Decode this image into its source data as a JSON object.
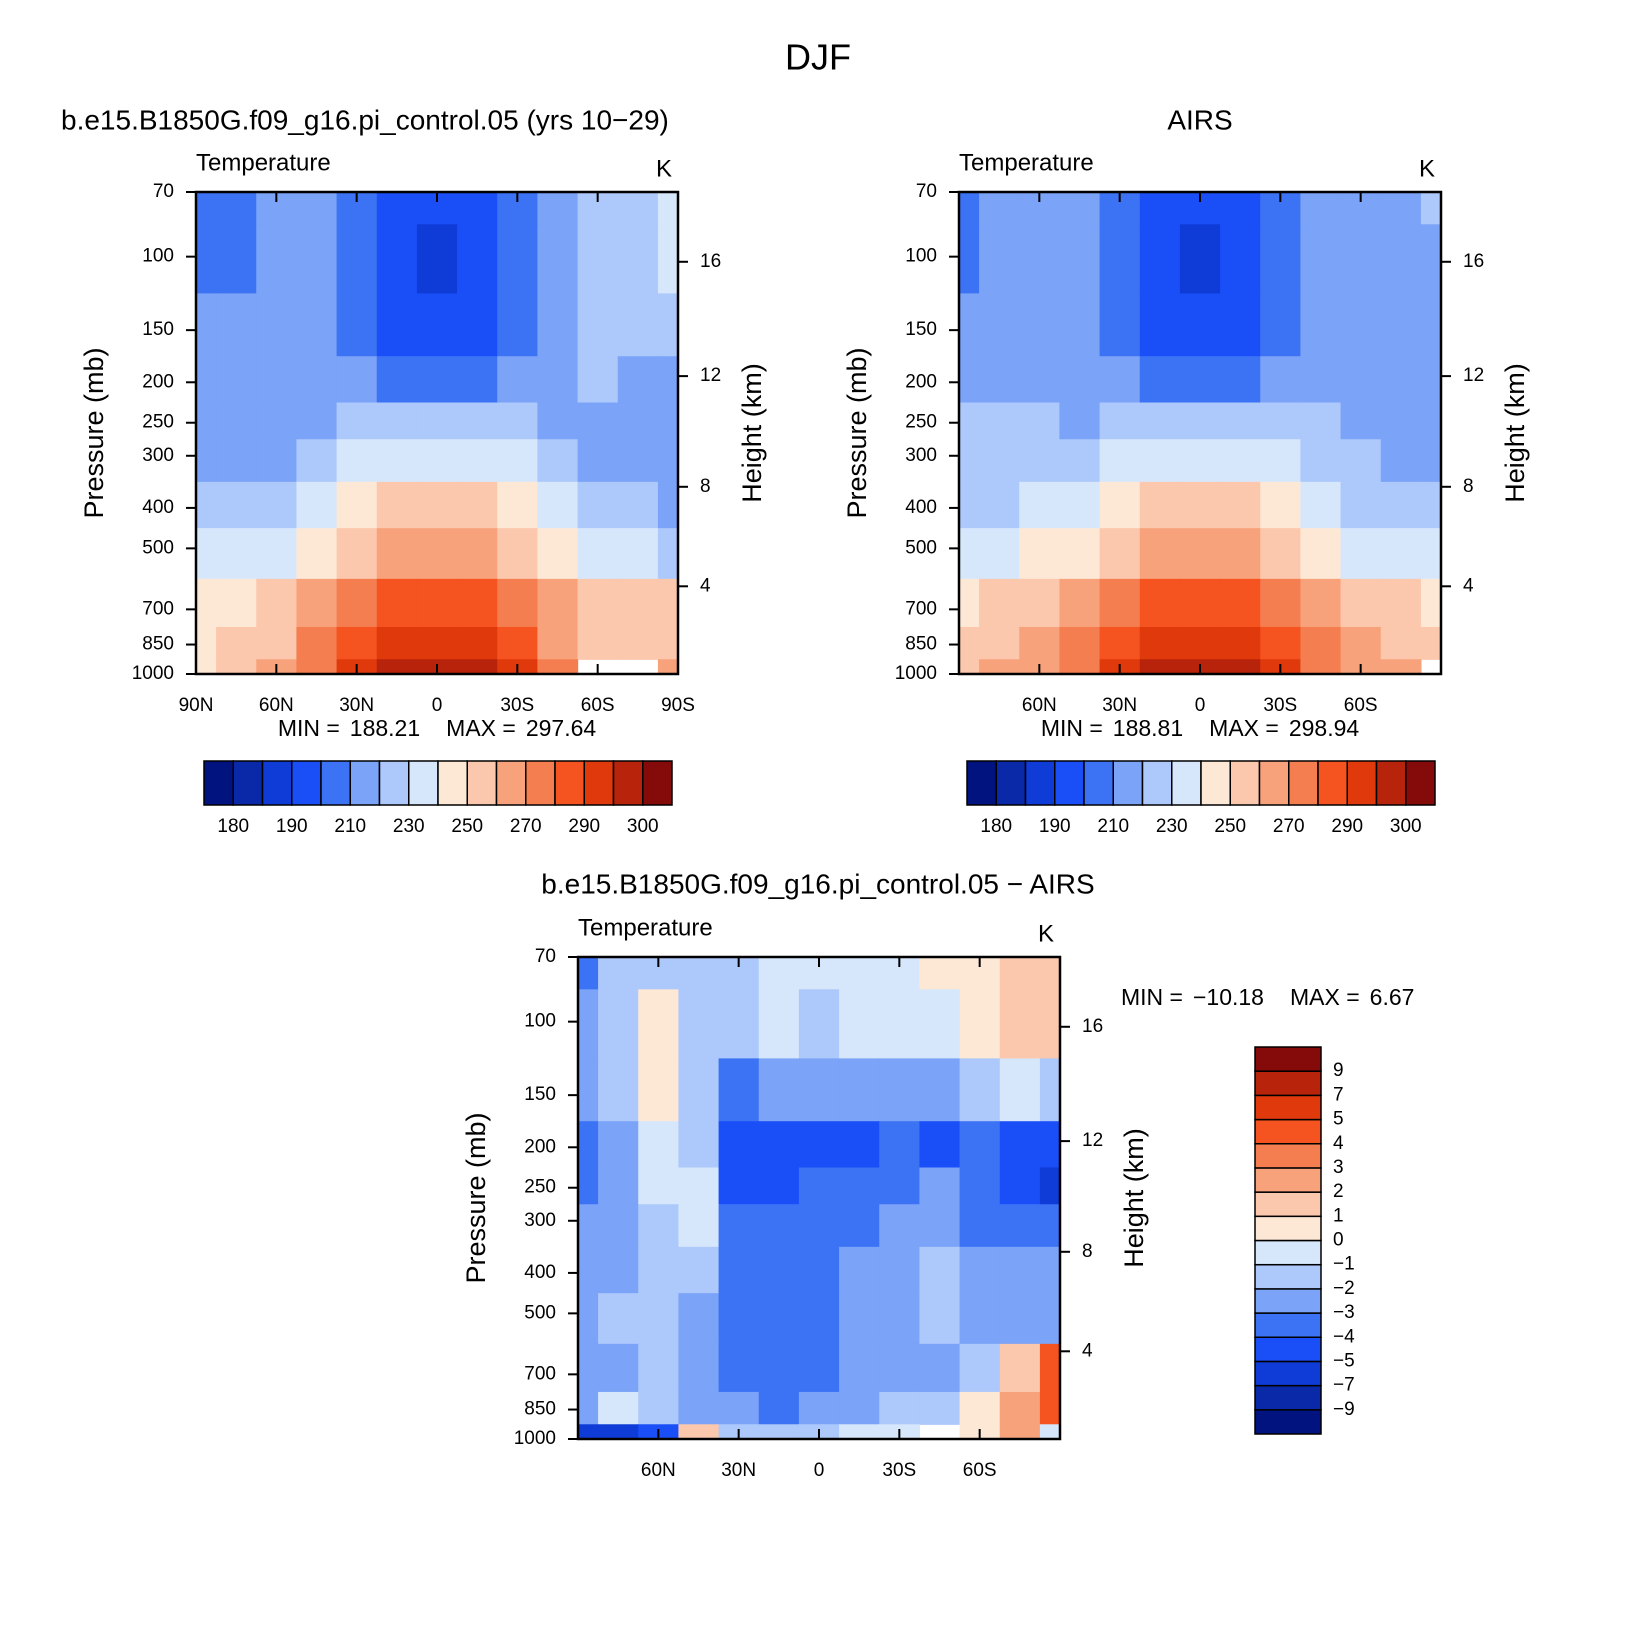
{
  "title": "DJF",
  "chart_data": [
    {
      "type": "contour",
      "subtitle": "b.e15.B1850G.f09_g16.pi_control.05 (yrs 10−29)",
      "left_label": "Temperature",
      "right_label": "K",
      "ylabel": "Pressure (mb)",
      "y2label": "Height (km)",
      "x": [
        90,
        75,
        60,
        45,
        30,
        15,
        0,
        -15,
        -30,
        -45,
        -60,
        -75,
        -90
      ],
      "y": [
        70,
        100,
        150,
        200,
        250,
        300,
        400,
        500,
        700,
        850,
        1000
      ],
      "values": [
        [
          205,
          205,
          215,
          215,
          205,
          195,
          195,
          195,
          205,
          215,
          225,
          225,
          235
        ],
        [
          205,
          205,
          215,
          215,
          205,
          195,
          188,
          195,
          205,
          215,
          225,
          225,
          235
        ],
        [
          215,
          215,
          215,
          215,
          205,
          195,
          195,
          195,
          205,
          215,
          225,
          225,
          225
        ],
        [
          215,
          215,
          215,
          215,
          215,
          205,
          205,
          205,
          215,
          215,
          225,
          215,
          215
        ],
        [
          215,
          215,
          215,
          215,
          225,
          225,
          225,
          225,
          225,
          215,
          215,
          215,
          215
        ],
        [
          215,
          215,
          215,
          225,
          235,
          235,
          235,
          235,
          235,
          225,
          215,
          215,
          215
        ],
        [
          225,
          225,
          225,
          235,
          245,
          255,
          255,
          255,
          245,
          235,
          225,
          225,
          215
        ],
        [
          235,
          235,
          235,
          245,
          255,
          265,
          265,
          265,
          255,
          245,
          235,
          235,
          225
        ],
        [
          245,
          245,
          255,
          265,
          275,
          285,
          285,
          285,
          275,
          265,
          255,
          255,
          255
        ],
        [
          245,
          255,
          255,
          275,
          285,
          292,
          292,
          292,
          285,
          265,
          255,
          255,
          255
        ],
        [
          245,
          255,
          265,
          275,
          292,
          297,
          297,
          297,
          292,
          275,
          null,
          null,
          265
        ]
      ],
      "xlim": [
        90,
        -90
      ],
      "ylim": [
        1000,
        70
      ],
      "log_y": true,
      "xticks": [
        {
          "value": 90,
          "label": "90N"
        },
        {
          "value": 60,
          "label": "60N"
        },
        {
          "value": 30,
          "label": "30N"
        },
        0,
        {
          "value": -30,
          "label": "30S"
        },
        {
          "value": -60,
          "label": "60S"
        },
        {
          "value": -90,
          "label": "90S"
        }
      ],
      "yticks": [
        70,
        100,
        150,
        200,
        250,
        300,
        400,
        500,
        700,
        850,
        1000
      ],
      "y2ticks": [
        4,
        8,
        12,
        16
      ],
      "stats": {
        "min_label": "MIN =",
        "min": 188.21,
        "max_label": "MAX =",
        "max": 297.64
      },
      "colorbar": {
        "orientation": "horizontal",
        "label_step": 2,
        "levels": [
          180,
          185,
          190,
          200,
          210,
          220,
          230,
          240,
          250,
          260,
          270,
          280,
          290,
          295,
          300
        ],
        "colors": [
          "#01137f",
          "#0a29a8",
          "#0f3bd6",
          "#1a4ff8",
          "#3c73f5",
          "#7ba3f8",
          "#adc8fb",
          "#d6e7fb",
          "#fde8d6",
          "#fcc8ad",
          "#f8a27c",
          "#f57e51",
          "#f5531f",
          "#e03a0c",
          "#b8230b",
          "#850a0a"
        ]
      }
    },
    {
      "type": "contour",
      "subtitle": "AIRS",
      "left_label": "Temperature",
      "right_label": "K",
      "ylabel": "Pressure (mb)",
      "y2label": "Height (km)",
      "x": [
        90,
        75,
        60,
        45,
        30,
        15,
        0,
        -15,
        -30,
        -45,
        -60,
        -75,
        -90
      ],
      "y": [
        70,
        100,
        150,
        200,
        250,
        300,
        400,
        500,
        700,
        850,
        1000
      ],
      "values": [
        [
          205,
          215,
          215,
          215,
          205,
          195,
          195,
          195,
          205,
          215,
          215,
          215,
          225
        ],
        [
          205,
          215,
          215,
          215,
          205,
          195,
          188,
          195,
          205,
          215,
          215,
          215,
          215
        ],
        [
          215,
          215,
          215,
          215,
          205,
          195,
          195,
          195,
          205,
          215,
          215,
          215,
          215
        ],
        [
          215,
          215,
          215,
          215,
          215,
          205,
          205,
          205,
          215,
          215,
          215,
          215,
          215
        ],
        [
          225,
          225,
          225,
          215,
          225,
          225,
          225,
          225,
          225,
          225,
          215,
          215,
          215
        ],
        [
          225,
          225,
          225,
          225,
          235,
          235,
          235,
          235,
          235,
          225,
          225,
          215,
          215
        ],
        [
          225,
          225,
          235,
          235,
          245,
          255,
          255,
          255,
          245,
          235,
          225,
          225,
          225
        ],
        [
          235,
          235,
          245,
          245,
          255,
          265,
          265,
          265,
          255,
          245,
          235,
          235,
          235
        ],
        [
          245,
          255,
          255,
          265,
          275,
          285,
          285,
          285,
          275,
          265,
          255,
          255,
          245
        ],
        [
          255,
          255,
          265,
          275,
          285,
          292,
          292,
          292,
          285,
          275,
          265,
          255,
          255
        ],
        [
          255,
          265,
          265,
          275,
          292,
          297,
          297,
          297,
          292,
          275,
          265,
          265,
          null
        ]
      ],
      "xlim": [
        90,
        -90
      ],
      "ylim": [
        1000,
        70
      ],
      "log_y": true,
      "xticks": [
        {
          "value": 60,
          "label": "60N"
        },
        {
          "value": 30,
          "label": "30N"
        },
        0,
        {
          "value": -30,
          "label": "30S"
        },
        {
          "value": -60,
          "label": "60S"
        }
      ],
      "yticks": [
        70,
        100,
        150,
        200,
        250,
        300,
        400,
        500,
        700,
        850,
        1000
      ],
      "y2ticks": [
        4,
        8,
        12,
        16
      ],
      "stats": {
        "min_label": "MIN =",
        "min": 188.81,
        "max_label": "MAX =",
        "max": 298.94
      },
      "colorbar": {
        "orientation": "horizontal",
        "label_step": 2,
        "levels": [
          180,
          185,
          190,
          200,
          210,
          220,
          230,
          240,
          250,
          260,
          270,
          280,
          290,
          295,
          300
        ],
        "colors": [
          "#01137f",
          "#0a29a8",
          "#0f3bd6",
          "#1a4ff8",
          "#3c73f5",
          "#7ba3f8",
          "#adc8fb",
          "#d6e7fb",
          "#fde8d6",
          "#fcc8ad",
          "#f8a27c",
          "#f57e51",
          "#f5531f",
          "#e03a0c",
          "#b8230b",
          "#850a0a"
        ]
      }
    },
    {
      "type": "contour",
      "subtitle": "b.e15.B1850G.f09_g16.pi_control.05 − AIRS",
      "left_label": "Temperature",
      "right_label": "K",
      "ylabel": "Pressure (mb)",
      "y2label": "Height (km)",
      "x": [
        90,
        75,
        60,
        45,
        30,
        15,
        0,
        -15,
        -30,
        -45,
        -60,
        -75,
        -90
      ],
      "y": [
        70,
        100,
        150,
        200,
        250,
        300,
        400,
        500,
        700,
        850,
        1000
      ],
      "values": [
        [
          -3.5,
          -1.5,
          -1.5,
          -1.5,
          -1.5,
          -0.5,
          -0.5,
          -0.5,
          -0.5,
          0.5,
          0.5,
          1.5,
          1.5
        ],
        [
          -2.5,
          -1.5,
          0.5,
          -1.5,
          -1.5,
          -0.5,
          -1.5,
          -0.5,
          -0.5,
          -0.5,
          0.5,
          1.5,
          1.5
        ],
        [
          -2.5,
          -1.5,
          0.5,
          -1.5,
          -3.5,
          -2.5,
          -2.5,
          -2.5,
          -2.5,
          -2.5,
          -1.5,
          -0.5,
          -1.5
        ],
        [
          -3.5,
          -2.5,
          -0.5,
          -1.5,
          -4.5,
          -4.5,
          -4.5,
          -4.5,
          -3.5,
          -4.5,
          -3.5,
          -4.5,
          -4.5
        ],
        [
          -3.5,
          -2.5,
          -0.5,
          -0.5,
          -4.5,
          -4.5,
          -3.5,
          -3.5,
          -3.5,
          -2.5,
          -3.5,
          -4.5,
          -6
        ],
        [
          -2.5,
          -2.5,
          -1.5,
          -0.5,
          -3.5,
          -3.5,
          -3.5,
          -3.5,
          -2.5,
          -2.5,
          -3.5,
          -3.5,
          -3.5
        ],
        [
          -2.5,
          -2.5,
          -1.5,
          -1.5,
          -3.5,
          -3.5,
          -3.5,
          -2.5,
          -2.5,
          -1.5,
          -2.5,
          -2.5,
          -2.5
        ],
        [
          -2.5,
          -1.5,
          -1.5,
          -2.5,
          -3.5,
          -3.5,
          -3.5,
          -2.5,
          -2.5,
          -1.5,
          -2.5,
          -2.5,
          -2.5
        ],
        [
          -2.5,
          -2.5,
          -1.5,
          -2.5,
          -3.5,
          -3.5,
          -3.5,
          -2.5,
          -2.5,
          -2.5,
          -1.5,
          1.5,
          4.5
        ],
        [
          -2.5,
          -0.5,
          -1.5,
          -2.5,
          -2.5,
          -3.5,
          -2.5,
          -2.5,
          -1.5,
          -1.5,
          0.5,
          2.5,
          4.5
        ],
        [
          -6,
          -6,
          -4.5,
          1.5,
          -1.5,
          -1.5,
          -1.5,
          -0.5,
          -0.5,
          null,
          0.5,
          2.5,
          -0.5
        ]
      ],
      "xlim": [
        90,
        -90
      ],
      "ylim": [
        1000,
        70
      ],
      "log_y": true,
      "xticks": [
        {
          "value": 60,
          "label": "60N"
        },
        {
          "value": 30,
          "label": "30N"
        },
        0,
        {
          "value": -30,
          "label": "30S"
        },
        {
          "value": -60,
          "label": "60S"
        }
      ],
      "yticks": [
        70,
        100,
        150,
        200,
        250,
        300,
        400,
        500,
        700,
        850,
        1000
      ],
      "y2ticks": [
        4,
        8,
        12,
        16
      ],
      "stats": {
        "min_label": "MIN =",
        "min": {
          "value": -10.18,
          "label": "−10.18"
        },
        "max_label": "MAX =",
        "max": 6.67
      },
      "colorbar": {
        "orientation": "vertical",
        "label_step": 1,
        "levels": [
          {
            "value": -9,
            "label": "−9"
          },
          {
            "value": -7,
            "label": "−7"
          },
          {
            "value": -5,
            "label": "−5"
          },
          {
            "value": -4,
            "label": "−4"
          },
          {
            "value": -3,
            "label": "−3"
          },
          {
            "value": -2,
            "label": "−2"
          },
          {
            "value": -1,
            "label": "−1"
          },
          0,
          1,
          2,
          3,
          4,
          5,
          7,
          9
        ],
        "colors": [
          "#01137f",
          "#0a29a8",
          "#0f3bd6",
          "#1a4ff8",
          "#3c73f5",
          "#7ba3f8",
          "#adc8fb",
          "#d6e7fb",
          "#fde8d6",
          "#fcc8ad",
          "#f8a27c",
          "#f57e51",
          "#f5531f",
          "#e03a0c",
          "#b8230b",
          "#850a0a"
        ]
      }
    }
  ]
}
